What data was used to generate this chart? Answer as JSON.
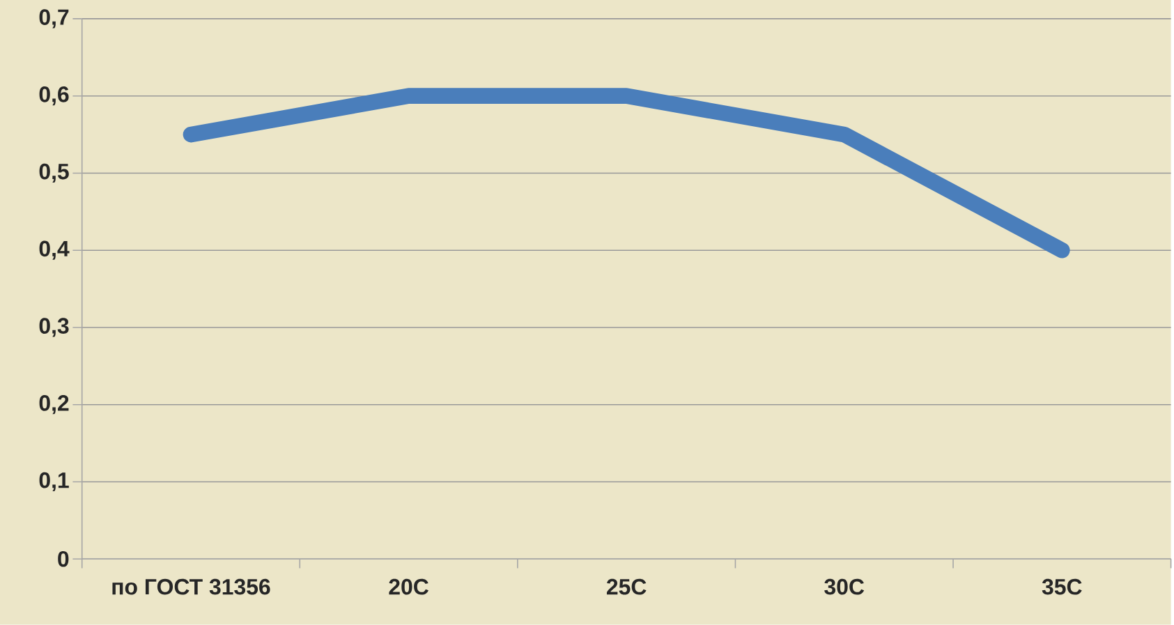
{
  "chart_data": {
    "type": "line",
    "categories": [
      "по ГОСТ 31356",
      "20C",
      "25C",
      "30C",
      "35C"
    ],
    "series": [
      {
        "color": "#4a7ebb",
        "values": [
          0.55,
          0.6,
          0.6,
          0.55,
          0.4
        ]
      }
    ],
    "ylim": [
      0,
      0.7
    ],
    "yticks": [
      {
        "value": 0,
        "label": "0"
      },
      {
        "value": 0.1,
        "label": "0,1"
      },
      {
        "value": 0.2,
        "label": "0,2"
      },
      {
        "value": 0.3,
        "label": "0,3"
      },
      {
        "value": 0.4,
        "label": "0,4"
      },
      {
        "value": 0.5,
        "label": "0,5"
      },
      {
        "value": 0.6,
        "label": "0,6"
      },
      {
        "value": 0.7,
        "label": "0,7"
      }
    ],
    "grid": "y",
    "marker": "none",
    "line_style": "solid"
  }
}
